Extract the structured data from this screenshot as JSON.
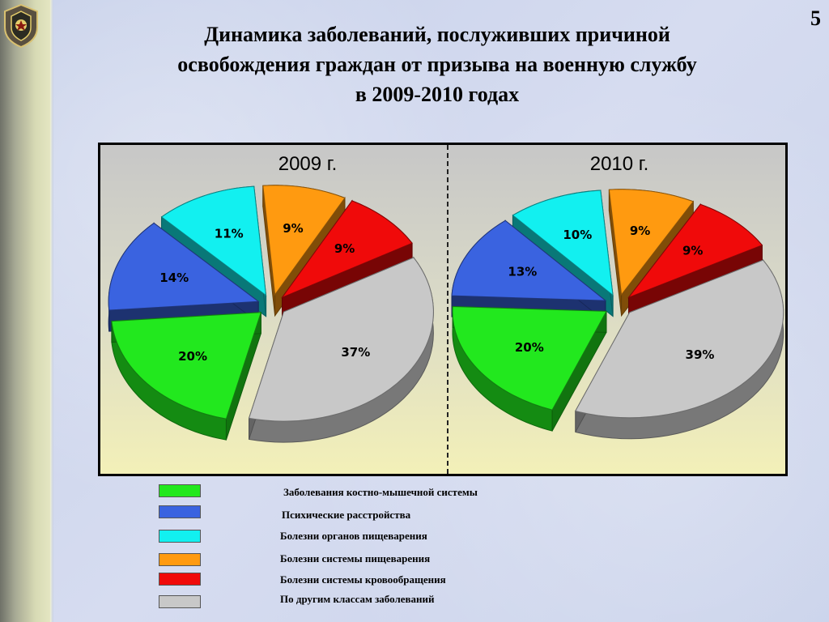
{
  "slide": {
    "number": "5",
    "title_lines": [
      "Динамика заболеваний, послуживших причиной",
      "освобождения граждан от призыва на военную службу",
      "в 2009-2010 годах"
    ]
  },
  "colors": {
    "musculoskeletal": "#22e81e",
    "mental": "#3a63e0",
    "digestive_organs": "#12f0f0",
    "digestive_system": "#ff9a10",
    "circulatory": "#f00a0a",
    "other": "#c8c8c8"
  },
  "chart_data": [
    {
      "type": "pie",
      "title": "2009 г.",
      "slices": [
        {
          "key": "other",
          "value": 37,
          "label": "37%"
        },
        {
          "key": "musculoskeletal",
          "value": 20,
          "label": "20%"
        },
        {
          "key": "mental",
          "value": 14,
          "label": "14%"
        },
        {
          "key": "digestive_organs",
          "value": 11,
          "label": "11%"
        },
        {
          "key": "digestive_system",
          "value": 9,
          "label": "9%"
        },
        {
          "key": "circulatory",
          "value": 9,
          "label": "9%"
        }
      ]
    },
    {
      "type": "pie",
      "title": "2010 г.",
      "slices": [
        {
          "key": "other",
          "value": 39,
          "label": "39%"
        },
        {
          "key": "musculoskeletal",
          "value": 20,
          "label": "20%"
        },
        {
          "key": "mental",
          "value": 13,
          "label": "13%"
        },
        {
          "key": "digestive_organs",
          "value": 10,
          "label": "10%"
        },
        {
          "key": "digestive_system",
          "value": 9,
          "label": "9%"
        },
        {
          "key": "circulatory",
          "value": 9,
          "label": "9%"
        }
      ]
    }
  ],
  "legend": [
    {
      "key": "musculoskeletal",
      "label": "Заболевания костно-мышечной системы"
    },
    {
      "key": "mental",
      "label": "Психические расстройства"
    },
    {
      "key": "digestive_organs",
      "label": "Болезни органов пищеварения"
    },
    {
      "key": "digestive_system",
      "label": "Болезни системы пищеварения"
    },
    {
      "key": "circulatory",
      "label": "Болезни системы кровообращения"
    },
    {
      "key": "other",
      "label": "По другим классам заболеваний"
    }
  ]
}
